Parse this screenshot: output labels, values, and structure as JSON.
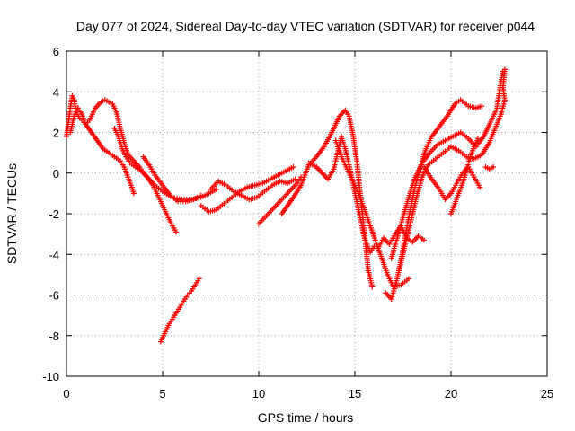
{
  "chart_data": {
    "type": "scatter",
    "title": "Day 077 of 2024, Sidereal Day-to-day VTEC variation (SDTVAR) for receiver p044",
    "xlabel": "GPS time / hours",
    "ylabel": "SDTVAR / TECUs",
    "xlim": [
      0,
      25
    ],
    "ylim": [
      -10,
      6
    ],
    "xticks": [
      0,
      5,
      10,
      15,
      20,
      25
    ],
    "yticks": [
      -10,
      -8,
      -6,
      -4,
      -2,
      0,
      2,
      4,
      6
    ],
    "grid": true,
    "marker": "+",
    "color": "#ff0000",
    "series": [
      {
        "points": [
          [
            0.0,
            1.8
          ],
          [
            0.1,
            2.5
          ],
          [
            0.2,
            3.2
          ],
          [
            0.3,
            3.8
          ],
          [
            0.4,
            3.6
          ],
          [
            0.5,
            3.0
          ],
          [
            0.7,
            2.7
          ],
          [
            0.9,
            2.5
          ],
          [
            1.0,
            2.4
          ],
          [
            1.2,
            2.6
          ],
          [
            1.5,
            3.2
          ],
          [
            1.8,
            3.5
          ],
          [
            2.0,
            3.6
          ],
          [
            2.2,
            3.5
          ],
          [
            2.4,
            3.4
          ],
          [
            2.6,
            3.0
          ],
          [
            2.8,
            2.2
          ],
          [
            3.0,
            1.5
          ],
          [
            3.2,
            0.9
          ],
          [
            3.5,
            0.6
          ],
          [
            3.8,
            0.3
          ],
          [
            4.0,
            0.0
          ],
          [
            4.3,
            -0.3
          ],
          [
            4.6,
            -0.6
          ],
          [
            5.0,
            -0.9
          ],
          [
            5.5,
            -1.2
          ],
          [
            6.0,
            -1.3
          ],
          [
            6.5,
            -1.3
          ],
          [
            7.0,
            -1.2
          ],
          [
            7.4,
            -1.0
          ],
          [
            7.8,
            -0.8
          ]
        ]
      },
      {
        "points": [
          [
            0.2,
            2.0
          ],
          [
            0.4,
            2.8
          ],
          [
            0.6,
            3.2
          ],
          [
            0.8,
            2.9
          ],
          [
            1.0,
            2.4
          ],
          [
            1.3,
            2.0
          ],
          [
            1.6,
            1.6
          ],
          [
            1.9,
            1.2
          ],
          [
            2.2,
            1.0
          ],
          [
            2.5,
            0.8
          ],
          [
            2.8,
            0.6
          ],
          [
            3.0,
            0.3
          ],
          [
            3.2,
            -0.2
          ],
          [
            3.4,
            -0.7
          ],
          [
            3.5,
            -1.0
          ]
        ]
      },
      {
        "points": [
          [
            2.5,
            2.2
          ],
          [
            2.7,
            1.8
          ],
          [
            2.9,
            1.2
          ],
          [
            3.1,
            0.8
          ],
          [
            3.3,
            0.5
          ],
          [
            3.6,
            0.3
          ],
          [
            3.9,
            0.1
          ],
          [
            4.2,
            -0.2
          ],
          [
            4.5,
            -0.6
          ],
          [
            4.8,
            -1.2
          ],
          [
            5.1,
            -1.8
          ],
          [
            5.4,
            -2.4
          ],
          [
            5.7,
            -2.9
          ]
        ]
      },
      {
        "points": [
          [
            4.0,
            0.8
          ],
          [
            4.3,
            0.4
          ],
          [
            4.6,
            -0.1
          ],
          [
            5.0,
            -0.6
          ],
          [
            5.4,
            -1.1
          ],
          [
            5.8,
            -1.4
          ],
          [
            6.2,
            -1.4
          ],
          [
            6.6,
            -1.3
          ],
          [
            7.0,
            -1.1
          ]
        ]
      },
      {
        "points": [
          [
            4.9,
            -8.3
          ],
          [
            5.1,
            -7.9
          ],
          [
            5.3,
            -7.5
          ],
          [
            5.5,
            -7.2
          ],
          [
            5.7,
            -6.9
          ],
          [
            5.9,
            -6.6
          ],
          [
            6.1,
            -6.3
          ],
          [
            6.3,
            -6.0
          ],
          [
            6.5,
            -5.8
          ],
          [
            6.7,
            -5.5
          ],
          [
            6.9,
            -5.2
          ]
        ]
      },
      {
        "points": [
          [
            7.0,
            -1.6
          ],
          [
            7.4,
            -1.9
          ],
          [
            7.8,
            -1.8
          ],
          [
            8.2,
            -1.5
          ],
          [
            8.6,
            -1.2
          ],
          [
            9.0,
            -0.9
          ],
          [
            9.4,
            -0.7
          ],
          [
            9.8,
            -0.6
          ],
          [
            10.2,
            -0.5
          ],
          [
            10.6,
            -0.3
          ],
          [
            11.0,
            -0.1
          ],
          [
            11.4,
            0.1
          ],
          [
            11.8,
            0.3
          ]
        ]
      },
      {
        "points": [
          [
            7.5,
            -0.8
          ],
          [
            7.9,
            -0.4
          ],
          [
            8.3,
            -0.6
          ],
          [
            8.7,
            -0.9
          ],
          [
            9.1,
            -1.1
          ],
          [
            9.5,
            -1.3
          ],
          [
            9.9,
            -1.2
          ],
          [
            10.3,
            -0.9
          ],
          [
            10.7,
            -0.6
          ],
          [
            11.1,
            -0.4
          ],
          [
            11.5,
            -0.5
          ],
          [
            11.9,
            -0.3
          ]
        ]
      },
      {
        "points": [
          [
            10.0,
            -2.5
          ],
          [
            10.4,
            -2.1
          ],
          [
            10.8,
            -1.7
          ],
          [
            11.2,
            -1.3
          ],
          [
            11.6,
            -0.9
          ],
          [
            12.0,
            -0.5
          ],
          [
            12.2,
            -0.2
          ]
        ]
      },
      {
        "points": [
          [
            11.2,
            -2.0
          ],
          [
            11.5,
            -1.6
          ],
          [
            11.8,
            -1.2
          ],
          [
            12.2,
            -0.6
          ],
          [
            12.6,
            0.4
          ],
          [
            13.0,
            0.8
          ],
          [
            13.4,
            1.3
          ],
          [
            13.8,
            2.0
          ],
          [
            14.2,
            2.8
          ],
          [
            14.5,
            3.1
          ],
          [
            14.7,
            2.8
          ],
          [
            14.9,
            1.9
          ],
          [
            15.1,
            0.6
          ],
          [
            15.3,
            -1.2
          ],
          [
            15.5,
            -3.0
          ],
          [
            15.7,
            -4.8
          ],
          [
            15.9,
            -5.6
          ]
        ]
      },
      {
        "points": [
          [
            12.6,
            0.5
          ],
          [
            13.0,
            0.3
          ],
          [
            13.3,
            0.0
          ],
          [
            13.6,
            -0.3
          ],
          [
            13.9,
            0.2
          ],
          [
            14.1,
            1.0
          ],
          [
            14.3,
            1.8
          ],
          [
            14.5,
            1.2
          ],
          [
            14.7,
            0.4
          ],
          [
            14.9,
            -0.5
          ],
          [
            15.1,
            -1.4
          ],
          [
            15.3,
            -2.3
          ],
          [
            15.5,
            -3.2
          ],
          [
            15.8,
            -3.9
          ],
          [
            16.0,
            -3.6
          ]
        ]
      },
      {
        "points": [
          [
            14.0,
            1.6
          ],
          [
            14.3,
            0.8
          ],
          [
            14.6,
            0.2
          ],
          [
            14.9,
            -0.4
          ],
          [
            15.2,
            -1.0
          ],
          [
            15.5,
            -1.8
          ],
          [
            15.8,
            -2.6
          ],
          [
            16.1,
            -3.4
          ],
          [
            16.4,
            -4.2
          ],
          [
            16.7,
            -5.0
          ],
          [
            17.0,
            -5.6
          ],
          [
            17.4,
            -5.5
          ],
          [
            17.8,
            -5.2
          ]
        ]
      },
      {
        "points": [
          [
            16.2,
            -3.7
          ],
          [
            16.5,
            -3.2
          ],
          [
            16.8,
            -3.5
          ],
          [
            17.1,
            -3.0
          ],
          [
            17.4,
            -2.6
          ],
          [
            17.7,
            -3.2
          ],
          [
            18.0,
            -3.4
          ],
          [
            18.3,
            -3.1
          ],
          [
            18.6,
            -3.3
          ]
        ]
      },
      {
        "points": [
          [
            16.6,
            -5.9
          ],
          [
            16.9,
            -6.2
          ],
          [
            17.2,
            -5.2
          ],
          [
            17.5,
            -3.8
          ],
          [
            17.8,
            -2.2
          ],
          [
            18.1,
            -0.8
          ],
          [
            18.4,
            0.3
          ],
          [
            18.7,
            1.2
          ],
          [
            19.0,
            1.8
          ],
          [
            19.4,
            2.3
          ],
          [
            19.8,
            2.8
          ],
          [
            20.2,
            3.4
          ],
          [
            20.5,
            3.6
          ],
          [
            20.9,
            3.3
          ],
          [
            21.3,
            3.2
          ],
          [
            21.6,
            3.3
          ]
        ]
      },
      {
        "points": [
          [
            16.9,
            -4.2
          ],
          [
            17.2,
            -3.2
          ],
          [
            17.5,
            -2.2
          ],
          [
            17.8,
            -1.2
          ],
          [
            18.1,
            -0.3
          ],
          [
            18.5,
            0.5
          ],
          [
            18.9,
            1.0
          ],
          [
            19.3,
            1.4
          ],
          [
            19.7,
            1.6
          ],
          [
            20.1,
            1.8
          ],
          [
            20.5,
            2.0
          ],
          [
            20.9,
            1.7
          ],
          [
            21.3,
            1.3
          ],
          [
            21.7,
            1.8
          ],
          [
            22.1,
            2.6
          ],
          [
            22.4,
            3.2
          ]
        ]
      },
      {
        "points": [
          [
            17.3,
            -4.8
          ],
          [
            17.6,
            -3.6
          ],
          [
            17.9,
            -2.4
          ],
          [
            18.2,
            -1.2
          ],
          [
            18.5,
            -0.2
          ],
          [
            18.8,
            0.4
          ],
          [
            19.2,
            0.7
          ],
          [
            19.6,
            1.0
          ],
          [
            20.0,
            1.3
          ],
          [
            20.4,
            1.1
          ],
          [
            20.8,
            0.8
          ],
          [
            21.2,
            0.7
          ],
          [
            21.6,
            0.9
          ],
          [
            22.0,
            1.5
          ],
          [
            22.3,
            2.2
          ],
          [
            22.6,
            2.9
          ]
        ]
      },
      {
        "points": [
          [
            18.6,
            0.3
          ],
          [
            19.0,
            -0.3
          ],
          [
            19.4,
            -0.8
          ],
          [
            19.7,
            -1.3
          ],
          [
            20.0,
            -1.0
          ],
          [
            20.3,
            -0.5
          ],
          [
            20.6,
            0.0
          ],
          [
            20.9,
            0.3
          ],
          [
            21.2,
            -0.2
          ],
          [
            21.5,
            -0.7
          ]
        ]
      },
      {
        "points": [
          [
            20.0,
            -2.0
          ],
          [
            20.2,
            -1.5
          ],
          [
            20.4,
            -1.0
          ],
          [
            20.6,
            -0.5
          ],
          [
            20.8,
            0.1
          ],
          [
            21.0,
            0.8
          ],
          [
            21.2,
            1.3
          ],
          [
            21.4,
            1.7
          ]
        ]
      },
      {
        "points": [
          [
            21.8,
            0.3
          ],
          [
            22.0,
            0.2
          ],
          [
            22.2,
            0.3
          ]
        ]
      },
      {
        "points": [
          [
            22.4,
            3.3
          ],
          [
            22.5,
            3.9
          ],
          [
            22.6,
            4.5
          ],
          [
            22.7,
            5.0
          ],
          [
            22.8,
            5.1
          ],
          [
            22.7,
            4.2
          ],
          [
            22.8,
            3.6
          ],
          [
            22.6,
            2.9
          ]
        ]
      }
    ]
  }
}
